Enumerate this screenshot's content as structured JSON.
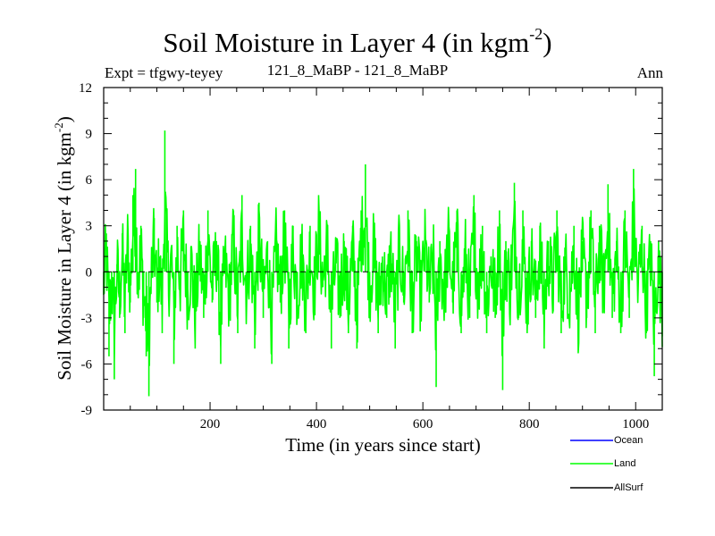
{
  "chart_data": {
    "type": "line",
    "title": "Soil Moisture in Layer 4 (in kgm",
    "title_exponent": "-2",
    "title_close": ")",
    "subtitle_left": "Expt = tfgwy-teyey",
    "subtitle_center": "121_8_MaBP - 121_8_MaBP",
    "subtitle_right": "Ann",
    "xlabel": "Time (in years since start)",
    "ylabel": "Soil Moisture in Layer 4 (in kgm",
    "ylabel_exponent": "-2",
    "ylabel_close": ")",
    "xlim": [
      0,
      1050
    ],
    "ylim": [
      -9,
      12
    ],
    "xticks": [
      200,
      400,
      600,
      800,
      1000
    ],
    "yticks": [
      -9,
      -6,
      -3,
      0,
      3,
      6,
      9,
      12
    ],
    "zero_line": 0,
    "series": [
      {
        "name": "Ocean",
        "color": "#0000ff",
        "values": []
      },
      {
        "name": "Land",
        "color": "#00ff00",
        "n_points": 1050,
        "anchors": [
          [
            0,
            -1.5
          ],
          [
            5,
            2.5
          ],
          [
            10,
            -5.5
          ],
          [
            15,
            -1
          ],
          [
            20,
            -7
          ],
          [
            25,
            0.5
          ],
          [
            30,
            -3
          ],
          [
            35,
            2.5
          ],
          [
            40,
            -4
          ],
          [
            45,
            3.5
          ],
          [
            50,
            -2
          ],
          [
            55,
            5
          ],
          [
            60,
            6.7
          ],
          [
            65,
            -1
          ],
          [
            70,
            3
          ],
          [
            75,
            -3
          ],
          [
            80,
            -5.5
          ],
          [
            85,
            -8.1
          ],
          [
            90,
            0
          ],
          [
            95,
            3.5
          ],
          [
            100,
            -2
          ],
          [
            105,
            1
          ],
          [
            110,
            -4
          ],
          [
            115,
            9.2
          ],
          [
            118,
            4
          ],
          [
            122,
            -1
          ],
          [
            128,
            1.5
          ],
          [
            132,
            -6
          ],
          [
            138,
            3
          ],
          [
            144,
            -1
          ],
          [
            150,
            4
          ],
          [
            158,
            -3
          ],
          [
            165,
            1
          ],
          [
            172,
            -5
          ],
          [
            180,
            2
          ],
          [
            188,
            -3
          ],
          [
            196,
            4
          ],
          [
            204,
            -2
          ],
          [
            212,
            2
          ],
          [
            220,
            -6
          ],
          [
            228,
            1
          ],
          [
            236,
            -3
          ],
          [
            244,
            4
          ],
          [
            252,
            -4
          ],
          [
            260,
            5
          ],
          [
            268,
            -2
          ],
          [
            276,
            3
          ],
          [
            284,
            -5
          ],
          [
            292,
            4.5
          ],
          [
            300,
            -3
          ],
          [
            308,
            2
          ],
          [
            316,
            -6
          ],
          [
            324,
            3
          ],
          [
            332,
            -2
          ],
          [
            340,
            4
          ],
          [
            348,
            -5
          ],
          [
            356,
            3
          ],
          [
            364,
            -3
          ],
          [
            372,
            2.5
          ],
          [
            380,
            -4
          ],
          [
            388,
            3
          ],
          [
            396,
            -2
          ],
          [
            404,
            5
          ],
          [
            412,
            -1
          ],
          [
            420,
            3
          ],
          [
            428,
            -5
          ],
          [
            436,
            1
          ],
          [
            444,
            -3
          ],
          [
            452,
            2
          ],
          [
            460,
            -4
          ],
          [
            468,
            3
          ],
          [
            476,
            -5
          ],
          [
            484,
            4
          ],
          [
            492,
            7
          ],
          [
            500,
            -2
          ],
          [
            508,
            3
          ],
          [
            516,
            -4
          ],
          [
            524,
            1
          ],
          [
            532,
            -3
          ],
          [
            540,
            2
          ],
          [
            548,
            -5
          ],
          [
            556,
            3
          ],
          [
            564,
            -2
          ],
          [
            572,
            4
          ],
          [
            580,
            -4
          ],
          [
            588,
            2
          ],
          [
            596,
            -3
          ],
          [
            604,
            3
          ],
          [
            612,
            -2
          ],
          [
            620,
            1
          ],
          [
            625,
            -7.5
          ],
          [
            632,
            2
          ],
          [
            640,
            -3
          ],
          [
            648,
            3.5
          ],
          [
            656,
            -2
          ],
          [
            664,
            4
          ],
          [
            672,
            -4
          ],
          [
            680,
            2
          ],
          [
            688,
            -3
          ],
          [
            696,
            5
          ],
          [
            704,
            -2
          ],
          [
            712,
            3
          ],
          [
            720,
            -4
          ],
          [
            728,
            1
          ],
          [
            736,
            -3
          ],
          [
            744,
            4
          ],
          [
            750,
            -7.7
          ],
          [
            756,
            2
          ],
          [
            764,
            -2
          ],
          [
            772,
            5.8
          ],
          [
            780,
            -3
          ],
          [
            788,
            4
          ],
          [
            796,
            -4
          ],
          [
            804,
            2
          ],
          [
            812,
            -3
          ],
          [
            820,
            3
          ],
          [
            828,
            -5
          ],
          [
            836,
            2
          ],
          [
            844,
            -2
          ],
          [
            852,
            4
          ],
          [
            860,
            -4
          ],
          [
            868,
            1
          ],
          [
            876,
            -3
          ],
          [
            884,
            3
          ],
          [
            892,
            -5
          ],
          [
            900,
            2
          ],
          [
            908,
            -3
          ],
          [
            916,
            4
          ],
          [
            924,
            -4
          ],
          [
            932,
            3
          ],
          [
            940,
            -2
          ],
          [
            948,
            5.7
          ],
          [
            956,
            -3
          ],
          [
            964,
            2
          ],
          [
            972,
            -4
          ],
          [
            980,
            4
          ],
          [
            988,
            -3
          ],
          [
            996,
            6.7
          ],
          [
            1004,
            -2
          ],
          [
            1012,
            3
          ],
          [
            1020,
            -4
          ],
          [
            1028,
            2
          ],
          [
            1035,
            -6.8
          ],
          [
            1042,
            1
          ],
          [
            1050,
            -4.2
          ]
        ]
      },
      {
        "name": "AllSurf",
        "color": "#000000",
        "values": []
      }
    ],
    "legend": [
      "Ocean",
      "Land",
      "AllSurf"
    ],
    "legend_position": "bottom-right"
  }
}
